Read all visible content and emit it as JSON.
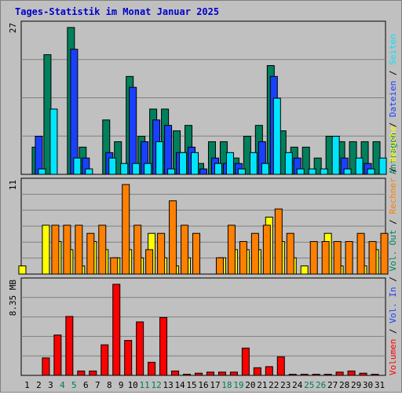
{
  "chart_data": {
    "type": "bar",
    "title": "Tages-Statistik im Monat Januar 2025",
    "categories": [
      "1",
      "2",
      "3",
      "4",
      "5",
      "6",
      "7",
      "8",
      "9",
      "10",
      "11",
      "12",
      "13",
      "14",
      "15",
      "16",
      "17",
      "18",
      "19",
      "20",
      "21",
      "22",
      "23",
      "24",
      "25",
      "26",
      "27",
      "28",
      "29",
      "30",
      "31"
    ],
    "weekend_days": [
      4,
      5,
      11,
      12,
      18,
      19,
      25,
      26
    ],
    "colors": {
      "title": "#0000cc",
      "weekend_label": "#007a59",
      "weekday_label": "#000000",
      "grid": "#808080"
    },
    "panels": [
      {
        "scale_label": "27",
        "ymax": 27,
        "series": [
          {
            "name": "Anfragen",
            "color": "#00805c",
            "values": [
              0,
              5,
              22,
              0,
              27,
              5,
              0,
              10,
              6,
              18,
              7,
              12,
              12,
              8,
              9,
              2,
              6,
              6,
              3,
              7,
              9,
              20,
              8,
              5,
              5,
              3,
              7,
              6,
              6,
              6,
              6
            ]
          },
          {
            "name": "Dateien",
            "color": "#1a40ff",
            "values": [
              0,
              7,
              0,
              0,
              23,
              3,
              0,
              4,
              0,
              16,
              6,
              10,
              9,
              4,
              5,
              1,
              3,
              2,
              2,
              0,
              6,
              18,
              0,
              3,
              0,
              0,
              0,
              3,
              0,
              2,
              0
            ]
          },
          {
            "name": "Seiten",
            "color": "#00e5ff",
            "values": [
              0,
              1,
              12,
              0,
              3,
              1,
              0,
              3,
              2,
              2,
              2,
              6,
              1,
              4,
              4,
              0,
              2,
              4,
              1,
              4,
              2,
              14,
              4,
              1,
              1,
              1,
              7,
              1,
              3,
              1,
              3
            ]
          }
        ]
      },
      {
        "scale_label": "11",
        "ymax": 11,
        "series": [
          {
            "name": "Besuche",
            "color": "#ffff00",
            "values": [
              1,
              0,
              6,
              4,
              3,
              1,
              4,
              3,
              2,
              3,
              2,
              5,
              2,
              1,
              2,
              0,
              0,
              2,
              3,
              3,
              3,
              7,
              4,
              2,
              1,
              0,
              5,
              1,
              0,
              1,
              3
            ]
          },
          {
            "name": "Rechner",
            "color": "#ff8000",
            "values": [
              0,
              0,
              6,
              6,
              6,
              5,
              6,
              2,
              11,
              6,
              3,
              5,
              9,
              6,
              5,
              0,
              2,
              6,
              4,
              5,
              6,
              8,
              5,
              0,
              4,
              4,
              4,
              4,
              5,
              4,
              5
            ]
          }
        ]
      },
      {
        "scale_label": "8.35 MB",
        "ymax": 8.35,
        "series": [
          {
            "name": "Volumen",
            "color": "#ff0000",
            "values": [
              0,
              0,
              1.6,
              3.7,
              5.4,
              0.4,
              0.4,
              2.8,
              8.35,
              3.2,
              4.9,
              1.2,
              5.3,
              0.4,
              0.1,
              0.2,
              0.3,
              0.3,
              0.3,
              2.5,
              0.7,
              0.8,
              1.7,
              0.1,
              0.1,
              0.1,
              0.1,
              0.3,
              0.4,
              0.2,
              0.1
            ]
          }
        ]
      }
    ],
    "legend_right": {
      "panel1": [
        {
          "text": "Anfragen",
          "color": "#00805c"
        },
        {
          "text": "Dateien",
          "color": "#1a40ff"
        },
        {
          "text": "Seiten",
          "color": "#00e5ff"
        }
      ],
      "panel2and3": [
        {
          "text": "Volumen",
          "color": "#ff0000"
        },
        {
          "text": "Vol. In",
          "color": "#1a40ff"
        },
        {
          "text": "Vol. Out",
          "color": "#00805c"
        },
        {
          "text": "Rechner",
          "color": "#ff8000"
        },
        {
          "text": "Besuche",
          "color": "#ffff00"
        }
      ],
      "separator": "/"
    }
  }
}
